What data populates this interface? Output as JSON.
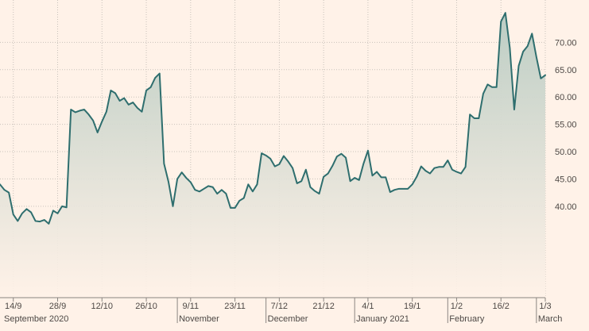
{
  "chart_data": {
    "type": "area",
    "title": "",
    "xlabel": "",
    "ylabel": "",
    "ylim": [
      28.5,
      76.3
    ],
    "y_ticks": [
      "40.00",
      "45.00",
      "50.00",
      "55.00",
      "60.00",
      "65.00",
      "70.00"
    ],
    "x_tick_labels": [
      {
        "label": "14/9",
        "index": 3
      },
      {
        "label": "28/9",
        "index": 13
      },
      {
        "label": "12/10",
        "index": 23
      },
      {
        "label": "26/10",
        "index": 33
      },
      {
        "label": "9/11",
        "index": 43
      },
      {
        "label": "23/11",
        "index": 53
      },
      {
        "label": "7/12",
        "index": 63
      },
      {
        "label": "21/12",
        "index": 73
      },
      {
        "label": "4/1",
        "index": 83
      },
      {
        "label": "19/1",
        "index": 93
      },
      {
        "label": "1/2",
        "index": 103
      },
      {
        "label": "16/2",
        "index": 113
      },
      {
        "label": "1/3",
        "index": 123
      }
    ],
    "month_labels": [
      {
        "label": "September 2020",
        "index": 0
      },
      {
        "label": "November",
        "index": 40
      },
      {
        "label": "December",
        "index": 60
      },
      {
        "label": "January 2021",
        "index": 80
      },
      {
        "label": "February",
        "index": 101
      },
      {
        "label": "March",
        "index": 121
      }
    ],
    "grid": true,
    "legend": "none",
    "colors": {
      "background": "#fff2e8",
      "line": "#2e6e6e",
      "fill_top": "#b9cbc2",
      "fill_bottom": "#fff2e8",
      "grid": "#c9c1ba",
      "text": "#4d4845"
    },
    "series": [
      {
        "values": [
          44.0,
          43.0,
          42.5,
          38.5,
          37.3,
          38.7,
          39.5,
          38.9,
          37.3,
          37.2,
          37.5,
          36.8,
          39.2,
          38.7,
          40.0,
          39.8,
          57.7,
          57.2,
          57.5,
          57.7,
          56.8,
          55.7,
          53.5,
          55.5,
          57.3,
          61.2,
          60.7,
          59.3,
          59.8,
          58.6,
          59.0,
          58.0,
          57.3,
          61.2,
          61.8,
          63.5,
          64.3,
          47.8,
          44.5,
          40.0,
          45.0,
          46.2,
          45.2,
          44.4,
          43.0,
          42.7,
          43.2,
          43.7,
          43.5,
          42.3,
          43.0,
          42.3,
          39.7,
          39.7,
          41.0,
          41.5,
          44.0,
          42.7,
          44.0,
          49.7,
          49.3,
          48.7,
          47.3,
          47.7,
          49.2,
          48.2,
          47.0,
          44.2,
          44.6,
          46.7,
          43.5,
          42.8,
          42.3,
          45.4,
          46.0,
          47.4,
          49.1,
          49.6,
          48.9,
          44.6,
          45.2,
          44.8,
          47.8,
          50.2,
          45.6,
          46.3,
          45.3,
          45.3,
          42.6,
          43.0,
          43.2,
          43.2,
          43.2,
          44.0,
          45.4,
          47.3,
          46.5,
          46.0,
          47.0,
          47.2,
          47.2,
          48.4,
          46.7,
          46.3,
          46.0,
          47.2,
          56.8,
          56.1,
          56.1,
          60.6,
          62.3,
          61.8,
          61.8,
          73.8,
          75.4,
          69.0,
          57.7,
          65.7,
          68.3,
          69.3,
          71.6,
          67.3,
          63.4,
          64.0
        ]
      }
    ]
  }
}
